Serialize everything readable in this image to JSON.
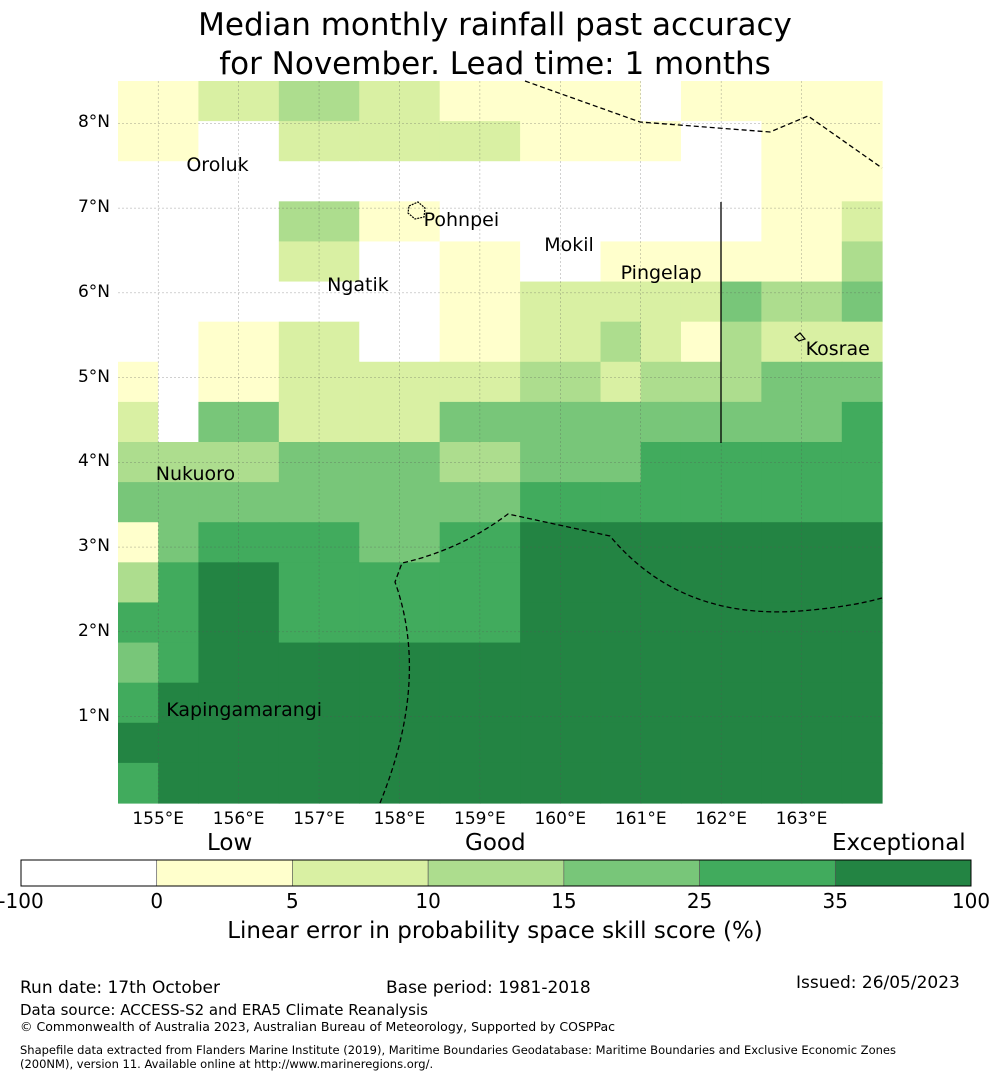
{
  "title": {
    "line1": "Median monthly rainfall past accuracy",
    "line2": "for November. Lead time: 1 months"
  },
  "map": {
    "lat_labels": [
      "8°N",
      "7°N",
      "6°N",
      "5°N",
      "4°N",
      "3°N",
      "2°N",
      "1°N"
    ],
    "lon_labels": [
      "155°E",
      "156°E",
      "157°E",
      "158°E",
      "159°E",
      "160°E",
      "161°E",
      "162°E",
      "163°E"
    ],
    "lon_range": [
      154.5,
      164.0
    ],
    "lat_range": [
      -0.02,
      8.5
    ],
    "places": [
      {
        "name": "Oroluk",
        "lon": 155.35,
        "lat": 7.5
      },
      {
        "name": "Pohnpei",
        "lon": 158.3,
        "lat": 6.85
      },
      {
        "name": "Mokil",
        "lon": 159.8,
        "lat": 6.55
      },
      {
        "name": "Ngatik",
        "lon": 157.1,
        "lat": 6.08
      },
      {
        "name": "Pingelap",
        "lon": 160.75,
        "lat": 6.22
      },
      {
        "name": "Kosrae",
        "lon": 163.05,
        "lat": 5.33
      },
      {
        "name": "Nukuoro",
        "lon": 154.97,
        "lat": 3.85
      },
      {
        "name": "Kapingamarangi",
        "lon": 155.1,
        "lat": 1.07
      }
    ],
    "grid": [
      [
        1,
        1,
        2,
        2,
        3,
        3,
        2,
        2,
        1,
        1,
        1,
        1,
        1,
        0,
        1,
        1,
        1,
        1,
        1
      ],
      [
        1,
        1,
        0,
        0,
        2,
        2,
        2,
        2,
        2,
        2,
        1,
        1,
        1,
        1,
        0,
        0,
        1,
        1,
        1
      ],
      [
        0,
        0,
        0,
        0,
        0,
        0,
        0,
        0,
        0,
        0,
        0,
        0,
        0,
        0,
        0,
        0,
        1,
        1,
        1
      ],
      [
        0,
        0,
        0,
        0,
        3,
        3,
        1,
        1,
        0,
        0,
        0,
        0,
        0,
        0,
        0,
        0,
        1,
        1,
        2
      ],
      [
        0,
        0,
        0,
        0,
        2,
        2,
        0,
        0,
        1,
        1,
        0,
        0,
        1,
        1,
        1,
        1,
        1,
        1,
        3
      ],
      [
        0,
        0,
        0,
        0,
        0,
        0,
        0,
        0,
        1,
        1,
        2,
        2,
        2,
        2,
        2,
        4,
        3,
        3,
        4
      ],
      [
        0,
        0,
        1,
        1,
        2,
        2,
        0,
        0,
        1,
        1,
        2,
        2,
        3,
        2,
        1,
        3,
        2,
        2,
        2
      ],
      [
        1,
        0,
        1,
        1,
        2,
        2,
        2,
        2,
        2,
        2,
        3,
        3,
        2,
        3,
        3,
        3,
        4,
        4,
        4
      ],
      [
        2,
        0,
        4,
        4,
        2,
        2,
        2,
        2,
        4,
        4,
        4,
        4,
        4,
        4,
        4,
        4,
        4,
        4,
        5
      ],
      [
        3,
        3,
        3,
        3,
        4,
        4,
        4,
        4,
        3,
        3,
        4,
        4,
        4,
        5,
        5,
        5,
        5,
        5,
        5
      ],
      [
        4,
        4,
        4,
        4,
        4,
        4,
        4,
        4,
        4,
        4,
        5,
        5,
        5,
        5,
        5,
        5,
        5,
        5,
        5
      ],
      [
        1,
        4,
        5,
        5,
        5,
        5,
        4,
        4,
        5,
        5,
        6,
        6,
        6,
        6,
        6,
        6,
        6,
        6,
        6
      ],
      [
        3,
        5,
        6,
        6,
        5,
        5,
        5,
        5,
        5,
        5,
        6,
        6,
        6,
        6,
        6,
        6,
        6,
        6,
        6
      ],
      [
        5,
        5,
        6,
        6,
        5,
        5,
        5,
        5,
        5,
        5,
        6,
        6,
        6,
        6,
        6,
        6,
        6,
        6,
        6
      ],
      [
        4,
        5,
        6,
        6,
        6,
        6,
        6,
        6,
        6,
        6,
        6,
        6,
        6,
        6,
        6,
        6,
        6,
        6,
        6
      ],
      [
        5,
        6,
        6,
        6,
        6,
        6,
        6,
        6,
        6,
        6,
        6,
        6,
        6,
        6,
        6,
        6,
        6,
        6,
        6
      ],
      [
        6,
        6,
        6,
        6,
        6,
        6,
        6,
        6,
        6,
        6,
        6,
        6,
        6,
        6,
        6,
        6,
        6,
        6,
        6
      ],
      [
        5,
        6,
        6,
        6,
        6,
        6,
        6,
        6,
        6,
        6,
        6,
        6,
        6,
        6,
        6,
        6,
        6,
        6,
        6
      ]
    ]
  },
  "legend": {
    "categories": [
      "Low",
      "Good",
      "Exceptional"
    ],
    "colors": [
      "#ffffff",
      "#ffffcc",
      "#d9f0a3",
      "#addd8e",
      "#78c679",
      "#41ab5d",
      "#238443"
    ],
    "ticks": [
      "-100",
      "0",
      "5",
      "10",
      "15",
      "25",
      "35",
      "100"
    ],
    "label": "Linear error in probability space skill score (%)"
  },
  "footer": {
    "run_date": "Run date: 17th October",
    "base_period": "Base period: 1981-2018",
    "issued": "Issued: 26/05/2023",
    "data_source": "Data source: ACCESS-S2 and ERA5 Climate Reanalysis",
    "copyright": "© Commonwealth of Australia 2023, Australian Bureau of Meteorology, Supported by COSPPac",
    "shapefile_1": "Shapefile data extracted from Flanders Marine Institute (2019), Maritime Boundaries Geodatabase: Maritime Boundaries and Exclusive Economic Zones",
    "shapefile_2": "(200NM), version 11. Available online at http://www.marineregions.org/."
  }
}
